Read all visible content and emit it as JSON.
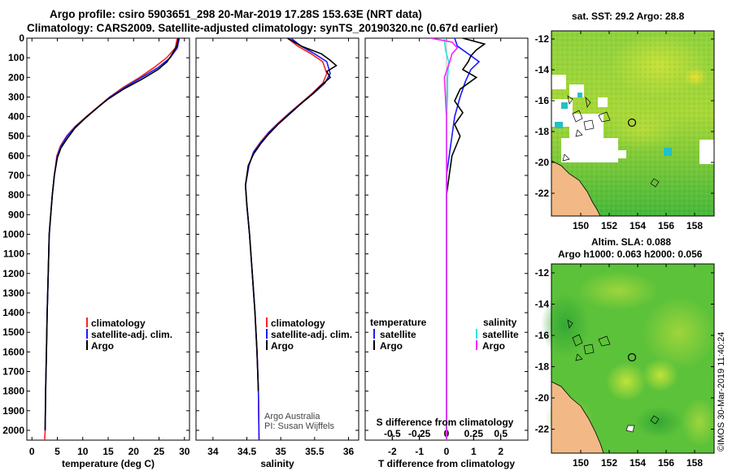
{
  "header": {
    "title_line1": "Argo profile: csiro 5903651_298 20-Mar-2019 17.28S 153.63E (NRT data)",
    "title_line2": "Climatology: CARS2009. Satellite-adjusted climatology: synTS_20190320.nc (0.67d earlier)"
  },
  "credits": {
    "line1": "Argo Australia",
    "line2": "PI: Susan Wijffels"
  },
  "watermark": "©IMOS 30-Mar-2019 11:40:24",
  "colors": {
    "climatology": "#ff2020",
    "satellite": "#1a1aff",
    "argo": "#000000",
    "sat_salinity": "#22e5e5",
    "argo_salinity": "#ff22ff",
    "land": "#f2b987",
    "ocean_green": "#4fc23a"
  },
  "chart_data": [
    {
      "id": "temperature",
      "type": "line",
      "xlabel": "temperature (deg C)",
      "ylabel": "",
      "xlim": [
        -1,
        31
      ],
      "ylim": [
        2050,
        0
      ],
      "xticks": [
        0,
        5,
        10,
        15,
        20,
        25,
        30
      ],
      "yticks": [
        0,
        100,
        200,
        300,
        400,
        500,
        600,
        700,
        800,
        900,
        1000,
        1100,
        1200,
        1300,
        1400,
        1500,
        1600,
        1700,
        1800,
        1900,
        2000
      ],
      "legend": [
        "climatology",
        "satellite-adj. clim.",
        "Argo"
      ],
      "series": [
        {
          "name": "climatology",
          "x": [
            28.6,
            28.2,
            26.5,
            24.0,
            21.2,
            18.0,
            15.3,
            13.0,
            10.7,
            8.5,
            6.8,
            5.6,
            4.9,
            4.4,
            4.0,
            3.7,
            3.4,
            3.2,
            3.0,
            2.85,
            2.7,
            2.6,
            2.5
          ],
          "y": [
            0,
            50,
            100,
            150,
            200,
            250,
            300,
            350,
            400,
            450,
            500,
            550,
            600,
            700,
            800,
            900,
            1000,
            1200,
            1400,
            1600,
            1800,
            2000,
            2050
          ]
        },
        {
          "name": "satellite-adj. clim.",
          "x": [
            29.0,
            28.6,
            27.2,
            24.8,
            21.6,
            18.3,
            15.4,
            13.1,
            10.8,
            8.6,
            6.9,
            5.7,
            5.0,
            4.4,
            4.0,
            3.7,
            3.4,
            3.2,
            3.0,
            2.85,
            2.7,
            2.6
          ],
          "y": [
            0,
            50,
            100,
            150,
            200,
            250,
            300,
            350,
            400,
            450,
            500,
            550,
            600,
            700,
            800,
            900,
            1000,
            1200,
            1400,
            1600,
            1800,
            2000
          ]
        },
        {
          "name": "Argo",
          "x": [
            28.8,
            28.5,
            27.6,
            26.6,
            24.8,
            21.6,
            18.0,
            15.0,
            13.1,
            10.4,
            8.4,
            7.0,
            5.7,
            5.0,
            4.4,
            4.0,
            3.7,
            3.4,
            3.2,
            3.0,
            2.85,
            2.7,
            2.6
          ],
          "y": [
            0,
            40,
            80,
            120,
            160,
            210,
            260,
            310,
            350,
            410,
            460,
            510,
            560,
            610,
            700,
            800,
            900,
            1000,
            1200,
            1400,
            1600,
            1800,
            2000
          ]
        }
      ]
    },
    {
      "id": "salinity",
      "type": "line",
      "xlabel": "salinity",
      "xlim": [
        33.75,
        36.15
      ],
      "ylim": [
        2050,
        0
      ],
      "xticks": [
        34,
        34.5,
        35,
        35.5,
        36
      ],
      "xticklabels": [
        "34",
        "34.5",
        "35",
        "35.5",
        "36"
      ],
      "legend": [
        "climatology",
        "satellite-adj. clim.",
        "Argo"
      ],
      "series": [
        {
          "name": "climatology",
          "x": [
            35.1,
            35.25,
            35.45,
            35.62,
            35.68,
            35.62,
            35.47,
            35.3,
            35.13,
            34.97,
            34.82,
            34.7,
            34.6,
            34.53,
            34.48,
            34.5,
            34.54,
            34.58,
            34.62,
            34.65,
            34.67,
            34.68
          ],
          "y": [
            0,
            40,
            80,
            120,
            180,
            230,
            280,
            330,
            380,
            430,
            480,
            530,
            580,
            650,
            750,
            850,
            1000,
            1200,
            1400,
            1600,
            1800,
            2050
          ]
        },
        {
          "name": "satellite-adj. clim.",
          "x": [
            35.15,
            35.3,
            35.5,
            35.68,
            35.73,
            35.65,
            35.49,
            35.31,
            35.14,
            34.98,
            34.83,
            34.71,
            34.6,
            34.53,
            34.48,
            34.5,
            34.54,
            34.58,
            34.62,
            34.65,
            34.67,
            34.68
          ],
          "y": [
            0,
            40,
            80,
            120,
            180,
            230,
            280,
            330,
            380,
            430,
            480,
            530,
            580,
            650,
            750,
            850,
            1000,
            1200,
            1400,
            1600,
            1800,
            2050
          ]
        },
        {
          "name": "Argo",
          "x": [
            35.1,
            35.3,
            35.6,
            35.72,
            35.82,
            35.68,
            35.73,
            35.6,
            35.45,
            35.28,
            35.12,
            34.96,
            34.82,
            34.7,
            34.6,
            34.52,
            34.48,
            34.5,
            34.54,
            34.58,
            34.62,
            34.65,
            34.67
          ],
          "y": [
            0,
            40,
            80,
            110,
            140,
            170,
            200,
            240,
            290,
            340,
            390,
            440,
            490,
            540,
            590,
            650,
            750,
            850,
            1000,
            1200,
            1400,
            1600,
            1800
          ]
        }
      ]
    },
    {
      "id": "difference",
      "type": "line",
      "xlabel": "T difference from climatology",
      "xlabel_top": "S difference from climatology",
      "xlim": [
        -3,
        3
      ],
      "ylim": [
        2050,
        0
      ],
      "xticks": [
        -2,
        -1,
        0,
        1,
        2
      ],
      "sticks": [
        -0.5,
        -0.25,
        0,
        0.25,
        0.5
      ],
      "sticklabels": [
        "-0.5",
        "-0.25",
        "0",
        "0.25",
        "0.5"
      ],
      "legend": [
        "temperature",
        "satellite",
        "Argo",
        "salinity",
        "satellite",
        "Argo"
      ],
      "series": [
        {
          "name": "temperature satellite",
          "x": [
            0.3,
            0.4,
            0.8,
            1.2,
            0.9,
            0.7,
            0.5,
            0.3,
            0.2,
            0.1,
            0.0,
            0.0,
            0.0,
            0.0,
            0.0,
            0.0,
            0.0
          ],
          "y": [
            0,
            40,
            80,
            120,
            160,
            220,
            300,
            400,
            500,
            600,
            700,
            800,
            900,
            1000,
            1200,
            1500,
            2050
          ]
        },
        {
          "name": "temperature Argo",
          "x": [
            0.6,
            1.4,
            1.1,
            0.9,
            0.8,
            0.6,
            1.1,
            0.5,
            0.3,
            0.6,
            0.3,
            0.5,
            0.2,
            0.1,
            0.0,
            0.0,
            0.0,
            0.0,
            0.0
          ],
          "y": [
            0,
            30,
            60,
            90,
            120,
            160,
            200,
            260,
            320,
            380,
            440,
            500,
            600,
            700,
            800,
            900,
            1000,
            1400,
            2050
          ]
        },
        {
          "name": "salinity satellite",
          "x": [
            -0.02,
            -0.01,
            0.02,
            0.01,
            0.01,
            0.0,
            0.0,
            0.0,
            0.0,
            0.0
          ],
          "y": [
            0,
            60,
            120,
            200,
            300,
            400,
            600,
            800,
            1000,
            2050
          ]
        },
        {
          "name": "salinity Argo",
          "x": [
            -0.15,
            0.05,
            0.1,
            0.05,
            0.03,
            -0.02,
            -0.01,
            0.0,
            0.0,
            0.0
          ],
          "y": [
            0,
            20,
            50,
            80,
            120,
            200,
            300,
            400,
            800,
            2050
          ]
        }
      ]
    }
  ],
  "map_top": {
    "title": "sat. SST: 29.2  Argo: 28.8",
    "yticks": [
      "-12",
      "-14",
      "-16",
      "-18",
      "-20",
      "-22"
    ],
    "xticks": [
      "150",
      "152",
      "154",
      "156",
      "158"
    ]
  },
  "map_bottom": {
    "title_line1": "Altim. SLA: 0.088",
    "title_line2": "Argo h1000: 0.063 h2000: 0.056",
    "yticks": [
      "-12",
      "-14",
      "-16",
      "-18",
      "-20",
      "-22"
    ],
    "xticks": [
      "150",
      "152",
      "154",
      "156",
      "158"
    ]
  }
}
